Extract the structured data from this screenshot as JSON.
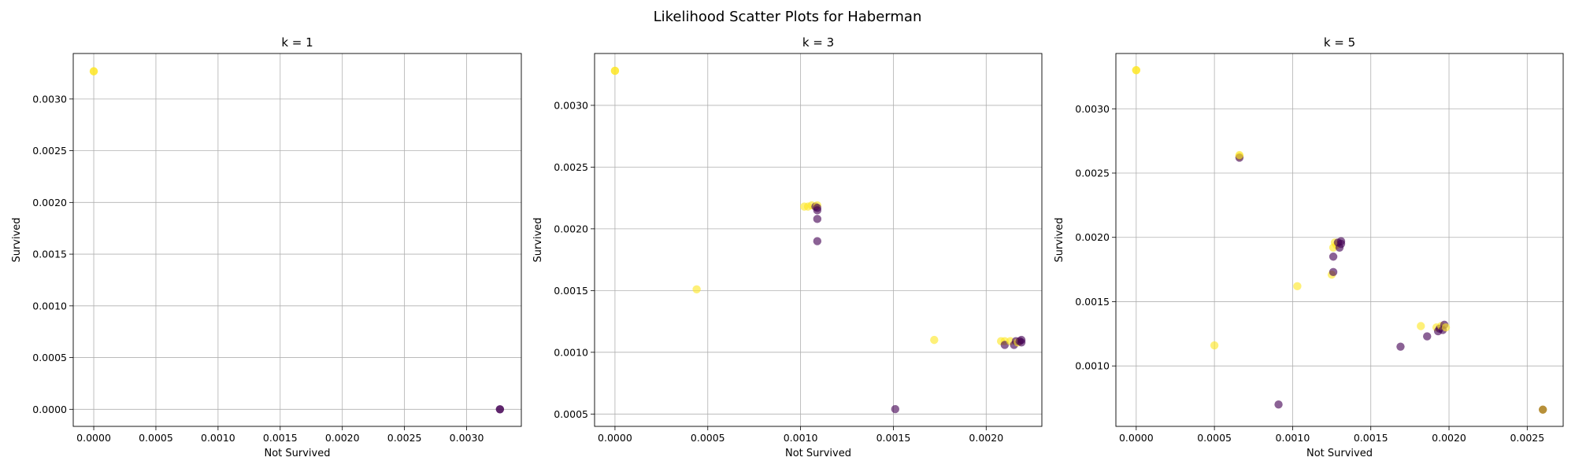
{
  "figure": {
    "suptitle": "Likelihood Scatter Plots for Haberman"
  },
  "colors": {
    "class0": "#440154",
    "class1": "#fde725",
    "mixed": "#b38a2e",
    "grid": "#b0b0b0"
  },
  "chart_data": [
    {
      "type": "scatter",
      "title": "k = 1",
      "xlabel": "Not Survived",
      "ylabel": "Survived",
      "xlim": [
        -0.000165,
        0.00344
      ],
      "ylim": [
        -0.000165,
        0.00344
      ],
      "xticks": [
        0,
        0.0005,
        0.001,
        0.0015,
        0.002,
        0.0025,
        0.003
      ],
      "xtick_labels": [
        "0.0000",
        "0.0005",
        "0.0010",
        "0.0015",
        "0.0020",
        "0.0025",
        "0.0030"
      ],
      "yticks": [
        0,
        0.0005,
        0.001,
        0.0015,
        0.002,
        0.0025,
        0.003
      ],
      "ytick_labels": [
        "0.0000",
        "0.0005",
        "0.0010",
        "0.0015",
        "0.0020",
        "0.0025",
        "0.0030"
      ],
      "grid": true,
      "points": [
        {
          "x": 0.0,
          "y": 0.003268,
          "c": 1
        },
        {
          "x": 0.0,
          "y": 0.003268,
          "c": 1
        },
        {
          "x": 0.003268,
          "y": 0.0,
          "c": 0
        },
        {
          "x": 0.003268,
          "y": 0.0,
          "c": 0
        }
      ]
    },
    {
      "type": "scatter",
      "title": "k = 3",
      "xlabel": "Not Survived",
      "ylabel": "Survived",
      "xlim": [
        -0.00011,
        0.0023
      ],
      "ylim": [
        0.0004,
        0.00342
      ],
      "xticks": [
        0,
        0.0005,
        0.001,
        0.0015,
        0.002
      ],
      "xtick_labels": [
        "0.0000",
        "0.0005",
        "0.0010",
        "0.0015",
        "0.0020"
      ],
      "yticks": [
        0.0005,
        0.001,
        0.0015,
        0.002,
        0.0025,
        0.003
      ],
      "ytick_labels": [
        "0.0005",
        "0.0010",
        "0.0015",
        "0.0020",
        "0.0025",
        "0.0030"
      ],
      "grid": true,
      "points": [
        {
          "x": 0.0,
          "y": 0.00328,
          "c": 1
        },
        {
          "x": 0.0,
          "y": 0.00328,
          "c": 1
        },
        {
          "x": 0.00044,
          "y": 0.00151,
          "c": 1
        },
        {
          "x": 0.00102,
          "y": 0.00218,
          "c": 1
        },
        {
          "x": 0.00104,
          "y": 0.00218,
          "c": 1
        },
        {
          "x": 0.00106,
          "y": 0.00219,
          "c": 1
        },
        {
          "x": 0.00108,
          "y": 0.00218,
          "c": 0
        },
        {
          "x": 0.00109,
          "y": 0.00219,
          "c": 1
        },
        {
          "x": 0.00109,
          "y": 0.00217,
          "c": 0
        },
        {
          "x": 0.00109,
          "y": 0.00215,
          "c": 0
        },
        {
          "x": 0.00109,
          "y": 0.00208,
          "c": 0
        },
        {
          "x": 0.00109,
          "y": 0.0019,
          "c": 0
        },
        {
          "x": 0.00151,
          "y": 0.00054,
          "c": 0
        },
        {
          "x": 0.00172,
          "y": 0.0011,
          "c": 1
        },
        {
          "x": 0.00208,
          "y": 0.00109,
          "c": 1
        },
        {
          "x": 0.0021,
          "y": 0.00109,
          "c": 1
        },
        {
          "x": 0.0021,
          "y": 0.00106,
          "c": 0
        },
        {
          "x": 0.00213,
          "y": 0.00109,
          "c": 1
        },
        {
          "x": 0.00215,
          "y": 0.00106,
          "c": 0
        },
        {
          "x": 0.00216,
          "y": 0.00109,
          "c": 0
        },
        {
          "x": 0.00217,
          "y": 0.00108,
          "c": 1
        },
        {
          "x": 0.00218,
          "y": 0.00109,
          "c": 0
        },
        {
          "x": 0.00219,
          "y": 0.00108,
          "c": 0
        },
        {
          "x": 0.00219,
          "y": 0.0011,
          "c": 0
        }
      ]
    },
    {
      "type": "scatter",
      "title": "k = 5",
      "xlabel": "Not Survived",
      "ylabel": "Survived",
      "xlim": [
        -0.00013,
        0.00273
      ],
      "ylim": [
        0.00053,
        0.00343
      ],
      "xticks": [
        0,
        0.0005,
        0.001,
        0.0015,
        0.002,
        0.0025
      ],
      "xtick_labels": [
        "0.0000",
        "0.0005",
        "0.0010",
        "0.0015",
        "0.0020",
        "0.0025"
      ],
      "yticks": [
        0.001,
        0.0015,
        0.002,
        0.0025,
        0.003
      ],
      "ytick_labels": [
        "0.0010",
        "0.0015",
        "0.0020",
        "0.0025",
        "0.0030"
      ],
      "grid": true,
      "points": [
        {
          "x": 0.0,
          "y": 0.0033,
          "c": 1
        },
        {
          "x": 0.0,
          "y": 0.0033,
          "c": 1
        },
        {
          "x": 0.00066,
          "y": 0.00263,
          "c": 1
        },
        {
          "x": 0.00066,
          "y": 0.00262,
          "c": 0
        },
        {
          "x": 0.00066,
          "y": 0.00264,
          "c": 1
        },
        {
          "x": 0.0005,
          "y": 0.00116,
          "c": 1
        },
        {
          "x": 0.00091,
          "y": 0.0007,
          "c": 0
        },
        {
          "x": 0.00103,
          "y": 0.00162,
          "c": 1
        },
        {
          "x": 0.00125,
          "y": 0.00171,
          "c": 1
        },
        {
          "x": 0.00126,
          "y": 0.00173,
          "c": 0
        },
        {
          "x": 0.00126,
          "y": 0.00185,
          "c": 0
        },
        {
          "x": 0.00126,
          "y": 0.00192,
          "c": 1
        },
        {
          "x": 0.00127,
          "y": 0.00196,
          "c": 1
        },
        {
          "x": 0.00128,
          "y": 0.00194,
          "c": 1
        },
        {
          "x": 0.00129,
          "y": 0.00196,
          "c": 0
        },
        {
          "x": 0.0013,
          "y": 0.00192,
          "c": 0
        },
        {
          "x": 0.00131,
          "y": 0.00195,
          "c": 0
        },
        {
          "x": 0.00131,
          "y": 0.00197,
          "c": 0
        },
        {
          "x": 0.00169,
          "y": 0.00115,
          "c": 0
        },
        {
          "x": 0.00182,
          "y": 0.00131,
          "c": 1
        },
        {
          "x": 0.00186,
          "y": 0.00123,
          "c": 0
        },
        {
          "x": 0.00192,
          "y": 0.0013,
          "c": 1
        },
        {
          "x": 0.00193,
          "y": 0.00127,
          "c": 0
        },
        {
          "x": 0.00194,
          "y": 0.00129,
          "c": 0
        },
        {
          "x": 0.00195,
          "y": 0.00131,
          "c": 1
        },
        {
          "x": 0.00196,
          "y": 0.00128,
          "c": 0
        },
        {
          "x": 0.00197,
          "y": 0.00132,
          "c": 0
        },
        {
          "x": 0.00198,
          "y": 0.0013,
          "c": 1
        },
        {
          "x": 0.0026,
          "y": 0.00066,
          "c": 2
        }
      ]
    }
  ]
}
